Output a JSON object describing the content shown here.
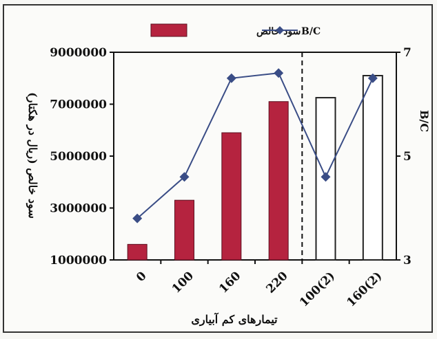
{
  "chart_data": {
    "type": "bar",
    "title": "",
    "xlabel": "تیمارهای کم آبیاری",
    "ylabel_left": "سود خالص (ریال در هکتار)",
    "ylabel_right": "B/C",
    "categories": [
      "0",
      "100",
      "160",
      "220",
      "100(2)",
      "160(2)"
    ],
    "ylim_left": [
      1000000,
      9000000
    ],
    "yticks_left": [
      "1000000",
      "3000000",
      "5000000",
      "7000000",
      "9000000"
    ],
    "ylim_right": [
      3,
      7
    ],
    "yticks_right": [
      "3",
      "5",
      "7"
    ],
    "grid": false,
    "legend_position": "top-center",
    "divider": "dashed vertical line between 220 and 100(2)",
    "series": [
      {
        "name": "سود خالص",
        "kind": "bar",
        "axis": "left",
        "color": "#b5233f",
        "values": [
          1600000,
          3300000,
          5900000,
          7100000,
          7250000,
          8100000
        ],
        "fill_styles": [
          "filled",
          "filled",
          "filled",
          "filled",
          "hollow",
          "hollow"
        ]
      },
      {
        "name": "B/C",
        "kind": "line",
        "axis": "right",
        "color": "#3a4d86",
        "marker": "diamond",
        "values": [
          3.8,
          4.6,
          6.5,
          6.6,
          4.6,
          6.5
        ]
      }
    ]
  }
}
